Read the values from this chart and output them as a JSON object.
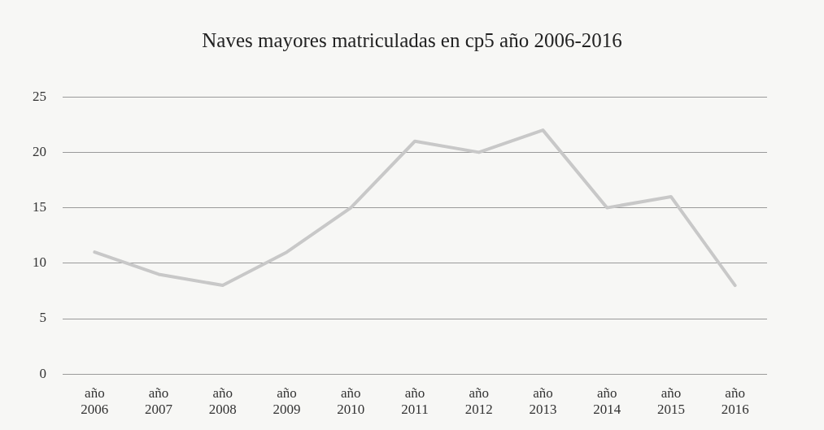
{
  "chart_data": {
    "type": "line",
    "title": "Naves mayores matriculadas en cp5 año 2006-2016",
    "categories": [
      "año 2006",
      "año 2007",
      "año 2008",
      "año 2009",
      "año 2010",
      "año 2011",
      "año 2012",
      "año 2013",
      "año 2014",
      "año 2015",
      "año 2016"
    ],
    "series": [
      {
        "color": "#c8c8c8",
        "values": [
          11,
          9,
          8,
          11,
          15,
          21,
          20,
          22,
          15,
          16,
          8
        ]
      }
    ],
    "ylim": [
      0,
      25
    ],
    "yticks": [
      0,
      5,
      10,
      15,
      20,
      25
    ],
    "grid": "y",
    "legend": false,
    "marker": "none",
    "line_style": "solid"
  }
}
